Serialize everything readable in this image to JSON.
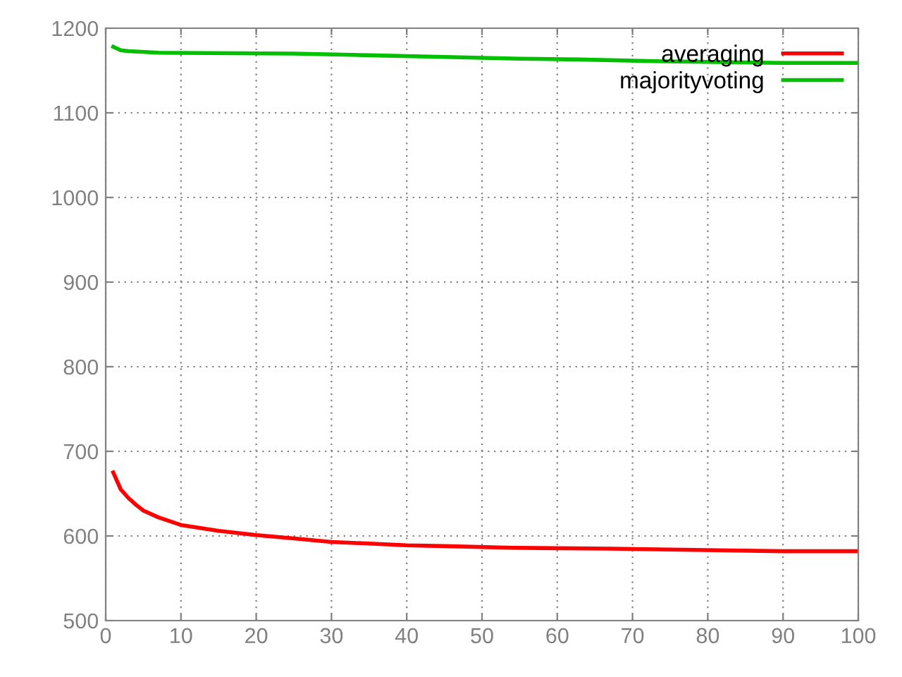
{
  "chart_data": {
    "type": "line",
    "xlim": [
      0,
      100
    ],
    "xticks": [
      0,
      10,
      20,
      30,
      40,
      50,
      60,
      70,
      80,
      90,
      100
    ],
    "ylim": [
      500,
      1200
    ],
    "yticks": [
      500,
      600,
      700,
      800,
      900,
      1000,
      1100,
      1200
    ],
    "grid": true,
    "legend": "top right",
    "marker": "none",
    "line_style": "solid",
    "series": [
      {
        "name": "averaging",
        "color": "#ff0000",
        "x": [
          1,
          2,
          3,
          4,
          5,
          7,
          10,
          15,
          20,
          25,
          30,
          35,
          40,
          45,
          54,
          67,
          90,
          100
        ],
        "values": [
          675,
          655,
          645,
          637,
          630,
          622,
          613,
          606,
          601,
          597,
          593,
          591,
          589,
          588,
          586,
          585,
          582,
          582
        ]
      },
      {
        "name": "majorityvoting",
        "color": "#00c000",
        "x": [
          1,
          2,
          3,
          7,
          25,
          35,
          45,
          55,
          63,
          73,
          90,
          100
        ],
        "values": [
          1178,
          1174,
          1173,
          1171,
          1170,
          1168,
          1166,
          1164,
          1163,
          1161,
          1159,
          1159
        ]
      }
    ]
  }
}
